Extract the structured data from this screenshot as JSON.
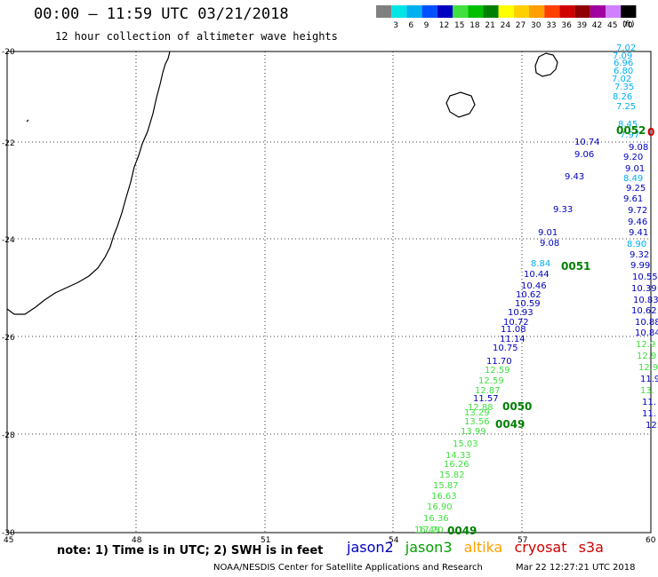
{
  "title": "00:00 – 11:59 UTC 03/21/2018",
  "subtitle": "12 hour collection of altimeter wave heights",
  "color_scale": {
    "unit": "(ft)",
    "bins": [
      {
        "label": "",
        "color": "#808080"
      },
      {
        "label": "3",
        "color": "#00e5e5"
      },
      {
        "label": "6",
        "color": "#00b0f0"
      },
      {
        "label": "9",
        "color": "#0050ff"
      },
      {
        "label": "12",
        "color": "#0000c0"
      },
      {
        "label": "15",
        "color": "#40e040"
      },
      {
        "label": "18",
        "color": "#00c000"
      },
      {
        "label": "21",
        "color": "#008000"
      },
      {
        "label": "24",
        "color": "#ffff00"
      },
      {
        "label": "27",
        "color": "#ffd000"
      },
      {
        "label": "30",
        "color": "#ffa000"
      },
      {
        "label": "33",
        "color": "#ff4000"
      },
      {
        "label": "36",
        "color": "#d00000"
      },
      {
        "label": "39",
        "color": "#900000"
      },
      {
        "label": "42",
        "color": "#a000a0"
      },
      {
        "label": "45",
        "color": "#d080ff"
      },
      {
        "label": "70",
        "color": "#000000"
      }
    ]
  },
  "axes": {
    "lon_ticks": [
      "45",
      "48",
      "51",
      "54",
      "57",
      "60"
    ],
    "lat_ticks": [
      "-20",
      "-22",
      "-24",
      "-26",
      "-28",
      "-30"
    ]
  },
  "wave_labels": [
    {
      "text": "7.02",
      "c": "#00b0f0"
    },
    {
      "text": "7.09",
      "c": "#00b0f0"
    },
    {
      "text": "6.96",
      "c": "#00b0f0"
    },
    {
      "text": "6.80",
      "c": "#00b0f0"
    },
    {
      "text": "7.02",
      "c": "#00b0f0"
    },
    {
      "text": "7.35",
      "c": "#00b0f0"
    },
    {
      "text": "8.26",
      "c": "#00b0f0"
    },
    {
      "text": "7.25",
      "c": "#00b0f0"
    },
    {
      "text": "8.45",
      "c": "#00b0f0"
    },
    {
      "text": "7.97",
      "c": "#00b0f0"
    },
    {
      "text": "9.08",
      "c": "#0000c0"
    },
    {
      "text": "9.20",
      "c": "#0000c0"
    },
    {
      "text": "9.01",
      "c": "#0000c0"
    },
    {
      "text": "8.49",
      "c": "#00b0f0"
    },
    {
      "text": "9.25",
      "c": "#0000c0"
    },
    {
      "text": "9.61",
      "c": "#0000c0"
    },
    {
      "text": "9.72",
      "c": "#0000c0"
    },
    {
      "text": "9.46",
      "c": "#0000c0"
    },
    {
      "text": "9.41",
      "c": "#0000c0"
    },
    {
      "text": "8.90",
      "c": "#00b0f0"
    },
    {
      "text": "9.32",
      "c": "#0000c0"
    },
    {
      "text": "9.99",
      "c": "#0000c0"
    },
    {
      "text": "10.55",
      "c": "#0000c0"
    },
    {
      "text": "10.39",
      "c": "#0000c0"
    },
    {
      "text": "10.83",
      "c": "#0000c0"
    },
    {
      "text": "10.62",
      "c": "#0000c0"
    },
    {
      "text": "10.88",
      "c": "#0000c0"
    },
    {
      "text": "10.84",
      "c": "#0000c0"
    },
    {
      "text": "12.9",
      "c": "#40e040"
    },
    {
      "text": "12.9",
      "c": "#40e040"
    },
    {
      "text": "12.9",
      "c": "#40e040"
    },
    {
      "text": "11.9",
      "c": "#0000c0"
    },
    {
      "text": "13.",
      "c": "#40e040"
    },
    {
      "text": "11.",
      "c": "#0000c0"
    },
    {
      "text": "11.",
      "c": "#0000c0"
    },
    {
      "text": "12.",
      "c": "#0000c0"
    },
    {
      "text": "10.74",
      "c": "#0000c0"
    },
    {
      "text": "9.06",
      "c": "#0000c0"
    },
    {
      "text": "9.43",
      "c": "#0000c0"
    },
    {
      "text": "9.33",
      "c": "#0000c0"
    },
    {
      "text": "9.01",
      "c": "#0000c0"
    },
    {
      "text": "9.08",
      "c": "#0000c0"
    },
    {
      "text": "8.84",
      "c": "#00b0f0"
    },
    {
      "text": "10.44",
      "c": "#0000c0"
    },
    {
      "text": "10.46",
      "c": "#0000c0"
    },
    {
      "text": "10.62",
      "c": "#0000c0"
    },
    {
      "text": "10.59",
      "c": "#0000c0"
    },
    {
      "text": "10.93",
      "c": "#0000c0"
    },
    {
      "text": "10.72",
      "c": "#0000c0"
    },
    {
      "text": "11.08",
      "c": "#0000c0"
    },
    {
      "text": "11.14",
      "c": "#0000c0"
    },
    {
      "text": "10.75",
      "c": "#0000c0"
    },
    {
      "text": "11.70",
      "c": "#0000c0"
    },
    {
      "text": "12.59",
      "c": "#40e040"
    },
    {
      "text": "12.59",
      "c": "#40e040"
    },
    {
      "text": "12.87",
      "c": "#40e040"
    },
    {
      "text": "11.57",
      "c": "#0000c0"
    },
    {
      "text": "12.88",
      "c": "#40e040"
    },
    {
      "text": "13.29",
      "c": "#40e040"
    },
    {
      "text": "13.56",
      "c": "#40e040"
    },
    {
      "text": "13.99",
      "c": "#40e040"
    },
    {
      "text": "15.03",
      "c": "#40e040"
    },
    {
      "text": "14.33",
      "c": "#40e040"
    },
    {
      "text": "16.26",
      "c": "#40e040"
    },
    {
      "text": "15.82",
      "c": "#40e040"
    },
    {
      "text": "15.87",
      "c": "#40e040"
    },
    {
      "text": "16.63",
      "c": "#40e040"
    },
    {
      "text": "16.90",
      "c": "#40e040"
    },
    {
      "text": "16.36",
      "c": "#40e040"
    },
    {
      "text": "17.20",
      "c": "#40e040"
    },
    {
      "text": "16.49",
      "c": "#40e040"
    }
  ],
  "pass_labels": [
    {
      "text": "0052",
      "c": "#008000"
    },
    {
      "text": "0",
      "c": "#d00000"
    },
    {
      "text": "0051",
      "c": "#008000"
    },
    {
      "text": "0050",
      "c": "#008000"
    },
    {
      "text": "0049",
      "c": "#008000"
    },
    {
      "text": "0049",
      "c": "#008000"
    }
  ],
  "note": "note: 1) Time is in UTC; 2) SWH is in feet",
  "satellites": [
    {
      "name": "jason2",
      "color": "#0000c0"
    },
    {
      "name": "jason3",
      "color": "#00a000"
    },
    {
      "name": "altika",
      "color": "#ffa000"
    },
    {
      "name": "cryosat",
      "color": "#d00000"
    },
    {
      "name": "s3a",
      "color": "#d00000"
    }
  ],
  "footer": "NOAA/NESDIS Center for Satellite Applications and Research",
  "timestamp": "Mar 22 12:27:21 UTC 2018"
}
